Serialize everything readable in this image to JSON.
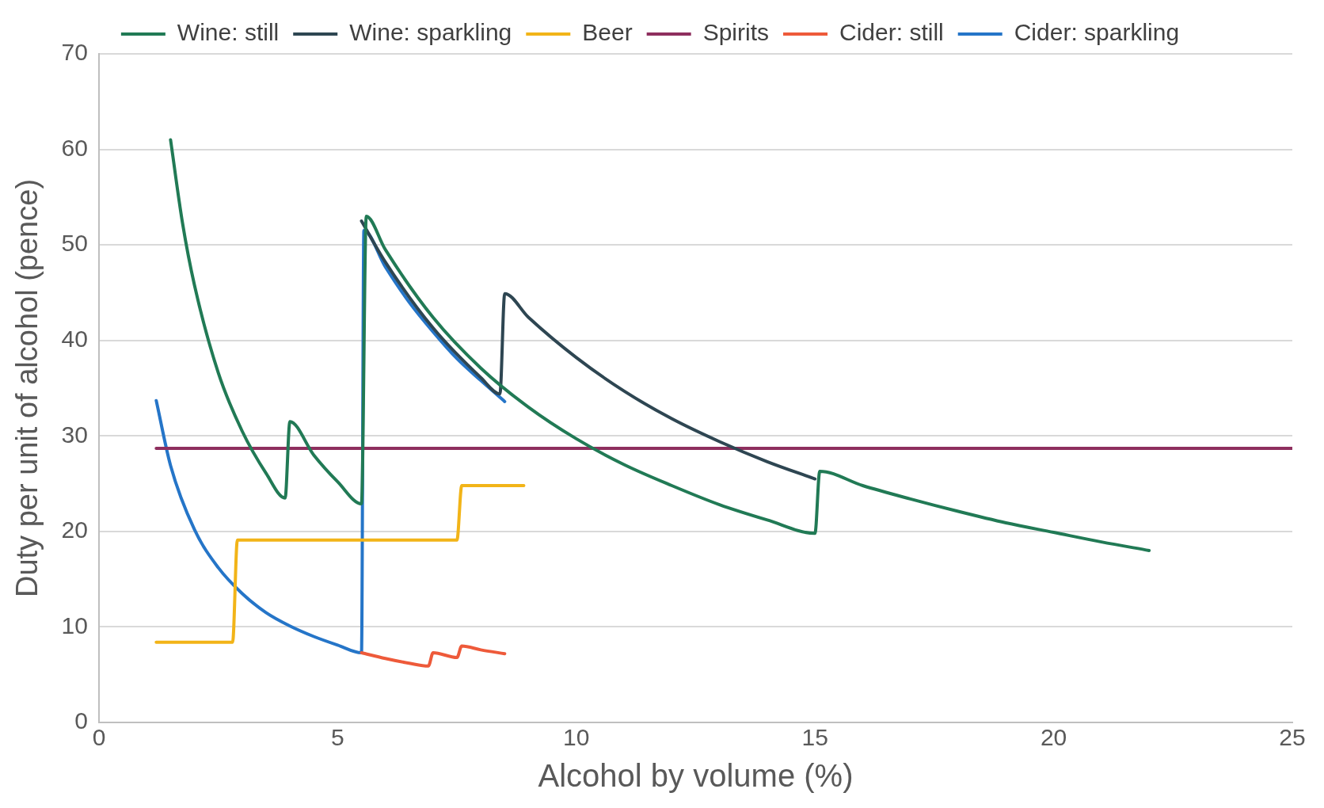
{
  "chart_data": {
    "type": "line",
    "xlabel": "Alcohol by volume (%)",
    "ylabel": "Duty per unit of alcohol (pence)",
    "xlim": [
      0,
      25
    ],
    "ylim": [
      0,
      70
    ],
    "xticks": [
      0,
      5,
      10,
      15,
      20,
      25
    ],
    "yticks": [
      0,
      10,
      20,
      30,
      40,
      50,
      60,
      70
    ],
    "grid": "y",
    "legend": "top",
    "marker": "none",
    "line_style": "solid",
    "series": [
      {
        "name": "Wine: still",
        "color": "#217a55",
        "x": [
          1.5,
          1.75,
          2,
          2.5,
          3,
          3.5,
          3.9,
          4.0,
          4.5,
          5,
          5.5,
          5.6,
          6,
          7,
          8,
          9,
          10,
          11,
          12,
          13,
          14,
          15,
          15.1,
          16,
          17,
          18,
          19,
          20,
          21,
          22
        ],
        "values": [
          61.0,
          52.3,
          45.8,
          36.6,
          30.5,
          26.1,
          23.5,
          31.5,
          28.0,
          25.2,
          22.9,
          53.0,
          49.5,
          42.4,
          37.1,
          33.0,
          29.7,
          27.0,
          24.8,
          22.8,
          21.2,
          19.8,
          26.3,
          24.8,
          23.4,
          22.1,
          20.9,
          19.9,
          18.9,
          18.0
        ]
      },
      {
        "name": "Wine: sparkling",
        "color": "#2e4652",
        "x": [
          5.5,
          6,
          7,
          8,
          8.4,
          8.5,
          9,
          10,
          11,
          12,
          13,
          14,
          15
        ],
        "values": [
          52.5,
          48.2,
          41.3,
          36.1,
          34.4,
          44.9,
          42.4,
          38.2,
          34.7,
          31.8,
          29.4,
          27.3,
          25.5
        ]
      },
      {
        "name": "Beer",
        "color": "#f2b418",
        "x": [
          1.2,
          2.8,
          2.9,
          7.5,
          7.6,
          8.9
        ],
        "values": [
          8.4,
          8.4,
          19.1,
          19.1,
          24.8,
          24.8
        ]
      },
      {
        "name": "Spirits",
        "color": "#8e2f5e",
        "x": [
          1.2,
          25
        ],
        "values": [
          28.7,
          28.7
        ]
      },
      {
        "name": "Cider: still",
        "color": "#ee5a3a",
        "x": [
          5.5,
          6,
          6.5,
          6.9,
          7,
          7.5,
          7.6,
          8,
          8.5
        ],
        "values": [
          7.3,
          6.7,
          6.2,
          5.9,
          7.3,
          6.8,
          8.0,
          7.6,
          7.2
        ]
      },
      {
        "name": "Cider: sparkling",
        "color": "#2575c8",
        "x": [
          1.2,
          1.5,
          2,
          2.5,
          3,
          3.5,
          4,
          4.5,
          5,
          5.5,
          5.55,
          6,
          6.5,
          7,
          7.5,
          8,
          8.5
        ],
        "values": [
          33.7,
          26.9,
          20.2,
          16.2,
          13.5,
          11.5,
          10.1,
          9.0,
          8.1,
          7.3,
          51.5,
          47.7,
          44.0,
          40.9,
          38.1,
          35.8,
          33.6
        ]
      }
    ]
  }
}
